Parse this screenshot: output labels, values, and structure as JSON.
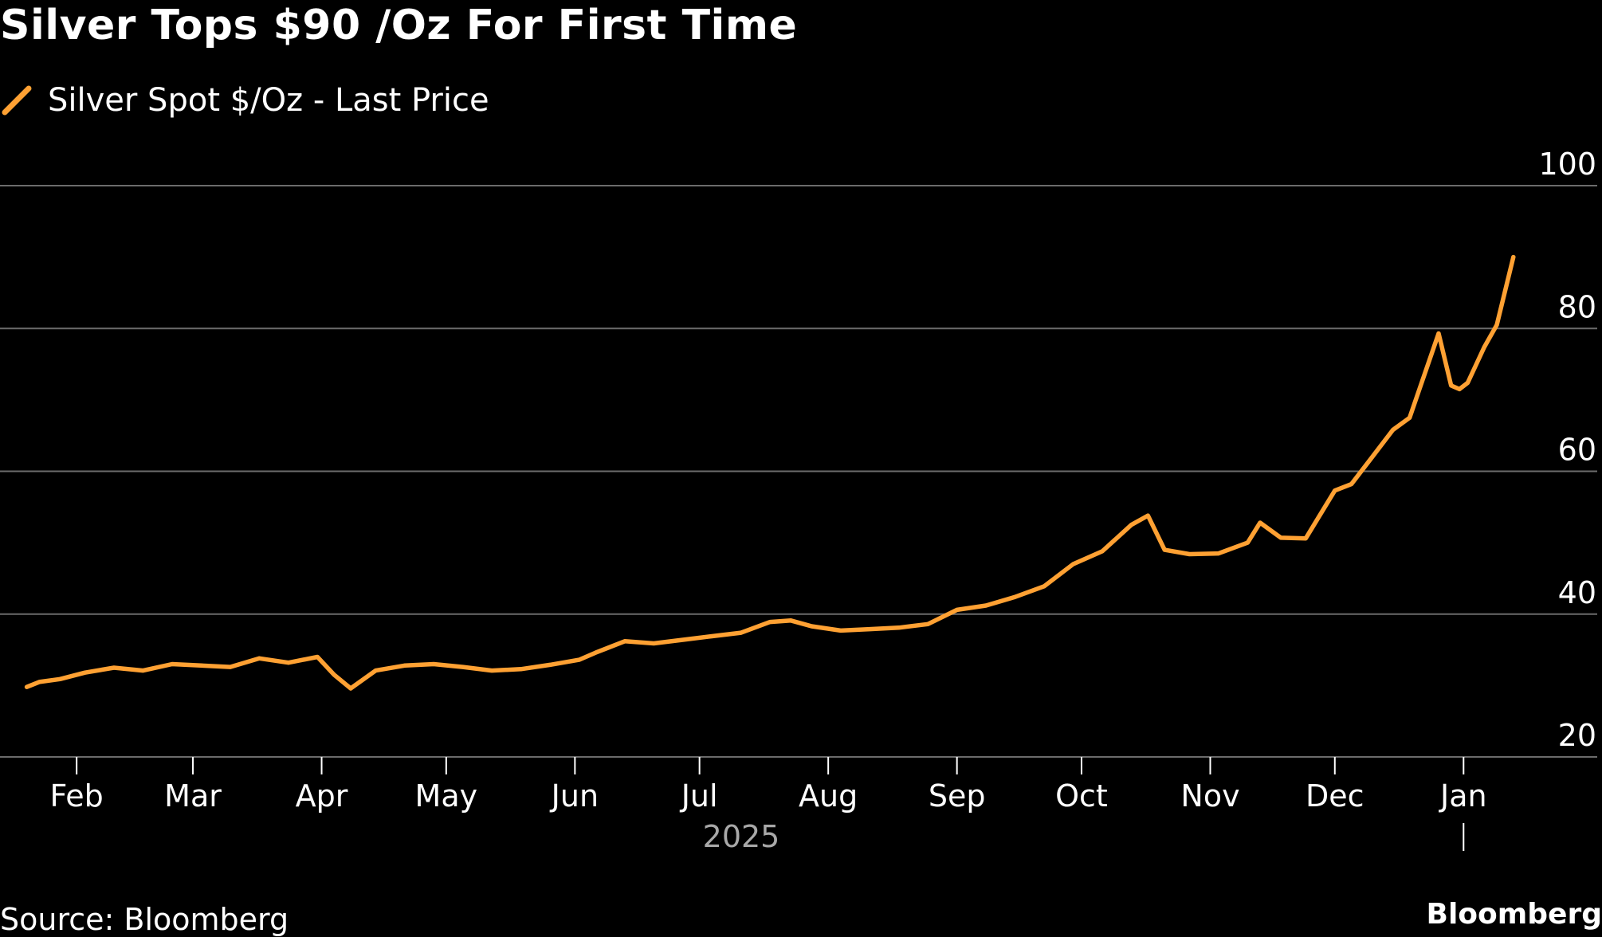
{
  "chart_data": {
    "type": "line",
    "title": "Silver Tops $90 /Oz For First Time",
    "xlabel": "",
    "ylabel": "",
    "ylim": [
      20,
      100
    ],
    "yticks": [
      "20",
      "40",
      "60",
      "80",
      "100"
    ],
    "xticks": [
      "Feb",
      "Mar",
      "Apr",
      "May",
      "Jun",
      "Jul",
      "Aug",
      "Sep",
      "Oct",
      "Nov",
      "Dec",
      "Jan"
    ],
    "year_label": "2025",
    "grid": true,
    "legend_position": "top-left",
    "color": "#FFA133",
    "series": [
      {
        "name": "Silver Spot $/Oz - Last Price",
        "x": [
          "2025-01-20",
          "2025-01-23",
          "2025-01-28",
          "2025-02-03",
          "2025-02-10",
          "2025-02-17",
          "2025-02-24",
          "2025-03-03",
          "2025-03-10",
          "2025-03-17",
          "2025-03-24",
          "2025-03-31",
          "2025-04-04",
          "2025-04-08",
          "2025-04-14",
          "2025-04-21",
          "2025-04-28",
          "2025-05-05",
          "2025-05-12",
          "2025-05-19",
          "2025-05-26",
          "2025-06-02",
          "2025-06-06",
          "2025-06-13",
          "2025-06-20",
          "2025-06-27",
          "2025-07-04",
          "2025-07-11",
          "2025-07-18",
          "2025-07-23",
          "2025-07-28",
          "2025-08-04",
          "2025-08-11",
          "2025-08-18",
          "2025-08-25",
          "2025-09-01",
          "2025-09-08",
          "2025-09-15",
          "2025-09-22",
          "2025-09-29",
          "2025-10-06",
          "2025-10-13",
          "2025-10-17",
          "2025-10-21",
          "2025-10-27",
          "2025-11-03",
          "2025-11-10",
          "2025-11-13",
          "2025-11-18",
          "2025-11-24",
          "2025-12-01",
          "2025-12-05",
          "2025-12-10",
          "2025-12-15",
          "2025-12-19",
          "2025-12-26",
          "2025-12-29",
          "2025-12-31",
          "2026-01-02",
          "2026-01-06",
          "2026-01-09",
          "2026-01-13"
        ],
        "values": [
          29.8,
          30.5,
          30.9,
          31.8,
          32.5,
          32.1,
          33.0,
          32.8,
          32.6,
          33.8,
          33.2,
          34.0,
          31.5,
          29.6,
          32.1,
          32.8,
          33.0,
          32.6,
          32.1,
          32.3,
          32.9,
          33.6,
          34.6,
          36.2,
          35.9,
          36.4,
          36.9,
          37.4,
          38.9,
          39.1,
          38.3,
          37.7,
          37.9,
          38.1,
          38.6,
          40.6,
          41.2,
          42.4,
          43.9,
          47.0,
          48.8,
          52.5,
          53.8,
          49.0,
          48.4,
          48.5,
          50.0,
          52.8,
          50.7,
          50.6,
          57.3,
          58.2,
          62.0,
          65.8,
          67.5,
          79.3,
          72.0,
          71.5,
          72.4,
          77.4,
          80.5,
          90.0
        ]
      }
    ]
  },
  "footer": {
    "source": "Source: Bloomberg",
    "brand": "Bloomberg"
  }
}
